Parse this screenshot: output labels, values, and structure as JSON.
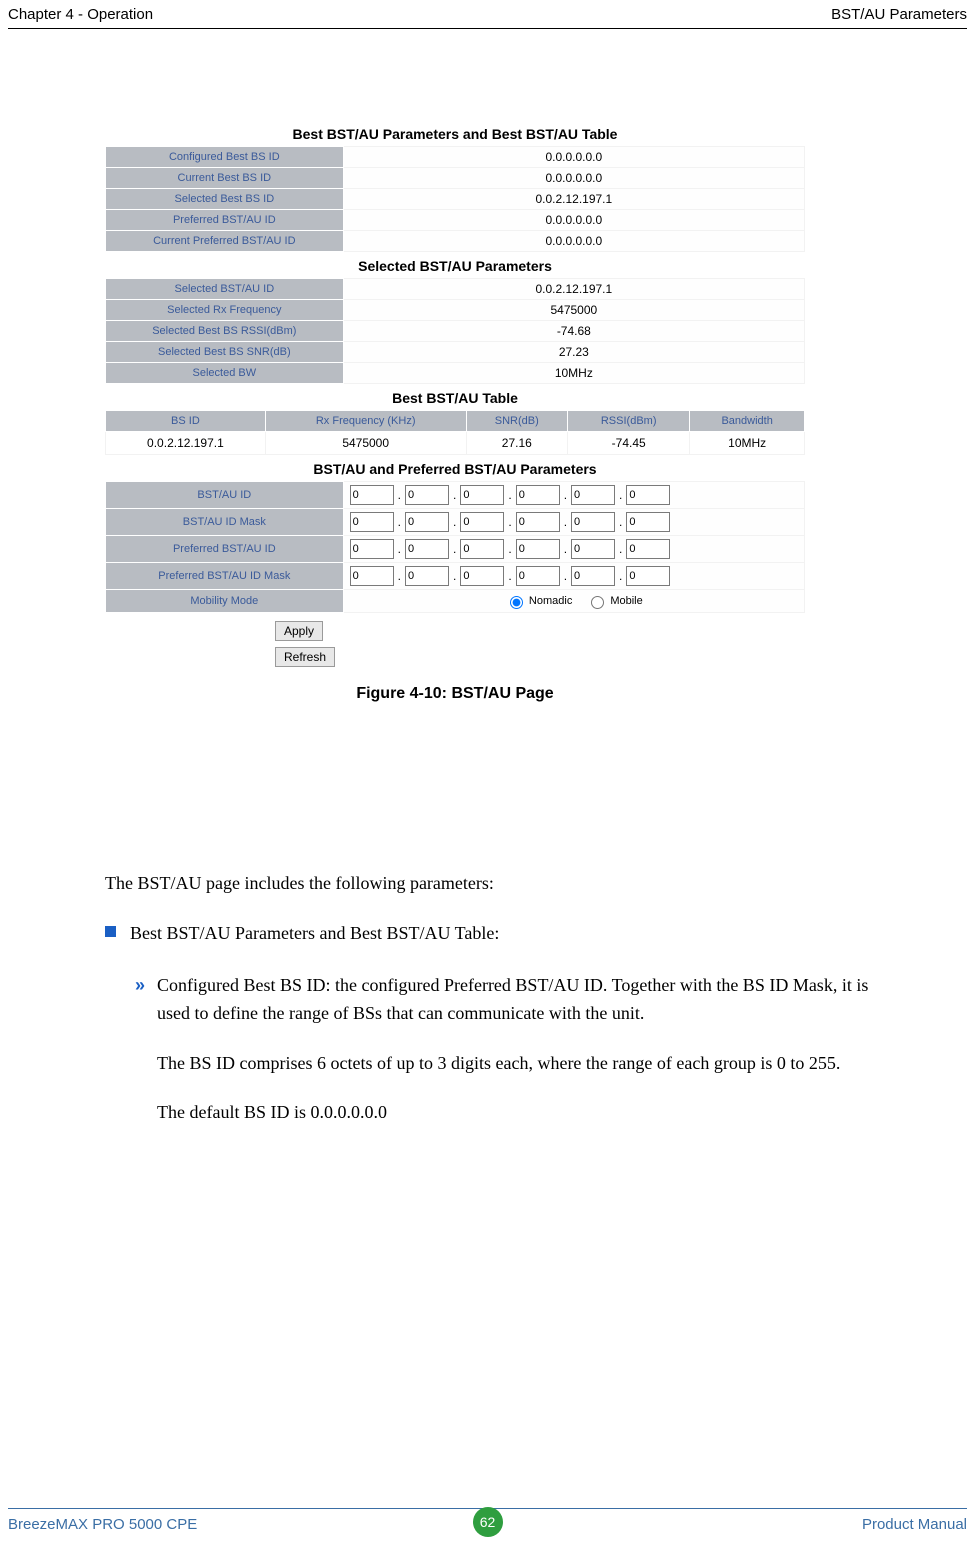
{
  "header": {
    "left": "Chapter 4 - Operation",
    "right": "BST/AU Parameters"
  },
  "figure": {
    "caption": "Figure 4-10: BST/AU Page",
    "section1_title": "Best BST/AU Parameters and Best BST/AU Table",
    "section1_rows": [
      {
        "label": "Configured Best BS ID",
        "value": "0.0.0.0.0.0"
      },
      {
        "label": "Current Best BS ID",
        "value": "0.0.0.0.0.0"
      },
      {
        "label": "Selected Best BS ID",
        "value": "0.0.2.12.197.1"
      },
      {
        "label": "Preferred BST/AU ID",
        "value": "0.0.0.0.0.0"
      },
      {
        "label": "Current Preferred BST/AU ID",
        "value": "0.0.0.0.0.0"
      }
    ],
    "section2_title": "Selected BST/AU Parameters",
    "section2_rows": [
      {
        "label": "Selected BST/AU ID",
        "value": "0.0.2.12.197.1"
      },
      {
        "label": "Selected Rx Frequency",
        "value": "5475000"
      },
      {
        "label": "Selected Best BS RSSI(dBm)",
        "value": "-74.68"
      },
      {
        "label": "Selected Best BS SNR(dB)",
        "value": "27.23"
      },
      {
        "label": "Selected BW",
        "value": "10MHz"
      }
    ],
    "section3_title": "Best BST/AU Table",
    "section3_columns": [
      "BS ID",
      "Rx Frequency (KHz)",
      "SNR(dB)",
      "RSSI(dBm)",
      "Bandwidth"
    ],
    "section3_rows": [
      [
        "0.0.2.12.197.1",
        "5475000",
        "27.16",
        "-74.45",
        "10MHz"
      ]
    ],
    "section4_title": "BST/AU and Preferred BST/AU Parameters",
    "section4_rows": [
      {
        "label": "BST/AU ID",
        "octets": [
          "0",
          "0",
          "0",
          "0",
          "0",
          "0"
        ]
      },
      {
        "label": "BST/AU ID Mask",
        "octets": [
          "0",
          "0",
          "0",
          "0",
          "0",
          "0"
        ]
      },
      {
        "label": "Preferred BST/AU ID",
        "octets": [
          "0",
          "0",
          "0",
          "0",
          "0",
          "0"
        ]
      },
      {
        "label": "Preferred BST/AU ID Mask",
        "octets": [
          "0",
          "0",
          "0",
          "0",
          "0",
          "0"
        ]
      }
    ],
    "mobility": {
      "label": "Mobility Mode",
      "option1": "Nomadic",
      "option2": "Mobile",
      "selected": "Nomadic"
    },
    "apply_label": "Apply",
    "refresh_label": "Refresh",
    "colors": {
      "header_cell_bg": "#b8bcc2",
      "header_cell_fg": "#3a5a9a",
      "button_bg": "#e8e8e8"
    }
  },
  "body": {
    "intro": "The BST/AU page includes the following parameters:",
    "bullet1": "Best BST/AU Parameters and Best BST/AU Table:",
    "sub1_a": "Configured Best BS ID: the configured Preferred BST/AU ID. Together with the BS ID Mask, it is used to define the range of BSs that can communicate with the unit.",
    "sub1_b": "The BS ID comprises 6 octets of up to 3 digits each, where the range of each group is 0 to 255.",
    "sub1_c": "The default BS ID is 0.0.0.0.0.0"
  },
  "footer": {
    "left": "BreezeMAX PRO 5000 CPE",
    "right": "Product Manual",
    "page": "62",
    "accent_color": "#3a6ea5",
    "badge_color": "#2f9e3f"
  }
}
